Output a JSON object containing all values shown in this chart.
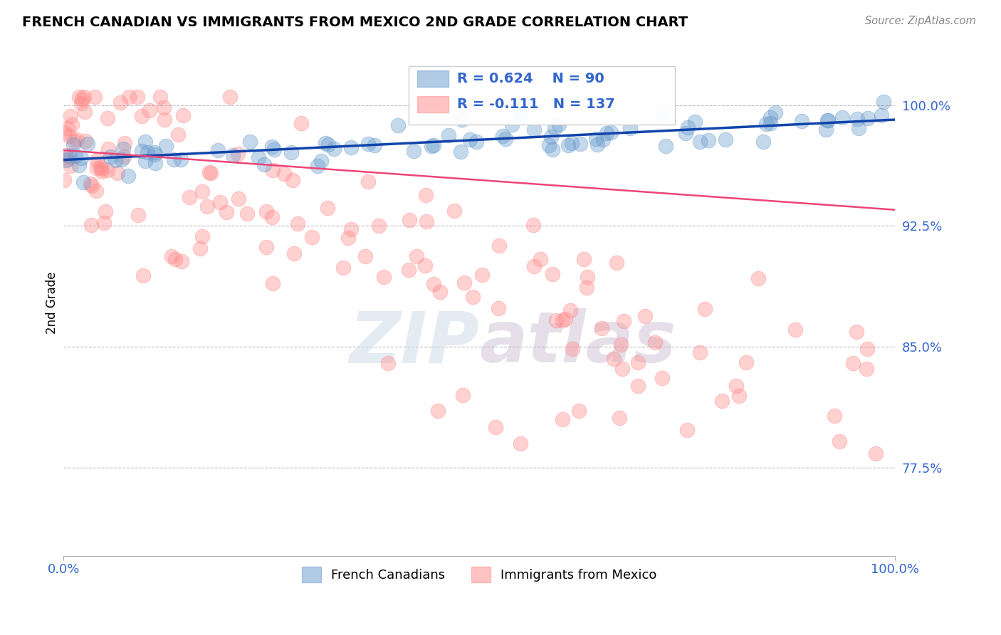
{
  "title": "FRENCH CANADIAN VS IMMIGRANTS FROM MEXICO 2ND GRADE CORRELATION CHART",
  "source": "Source: ZipAtlas.com",
  "ylabel": "2nd Grade",
  "yticks": [
    0.775,
    0.85,
    0.925,
    1.0
  ],
  "ytick_labels": [
    "77.5%",
    "85.0%",
    "92.5%",
    "100.0%"
  ],
  "xlim": [
    0.0,
    1.0
  ],
  "ylim": [
    0.72,
    1.035
  ],
  "blue_R": 0.624,
  "blue_N": 90,
  "pink_R": -0.111,
  "pink_N": 137,
  "blue_color": "#6699CC",
  "pink_color": "#FF8888",
  "blue_line_color": "#1144AA",
  "pink_line_color": "#EE4477",
  "watermark": "ZIPatlas",
  "legend_label_blue": "French Canadians",
  "legend_label_pink": "Immigrants from Mexico",
  "blue_trend": [
    0.966,
    0.991
  ],
  "pink_trend": [
    0.972,
    0.935
  ],
  "blue_seed": 42,
  "pink_seed": 99
}
